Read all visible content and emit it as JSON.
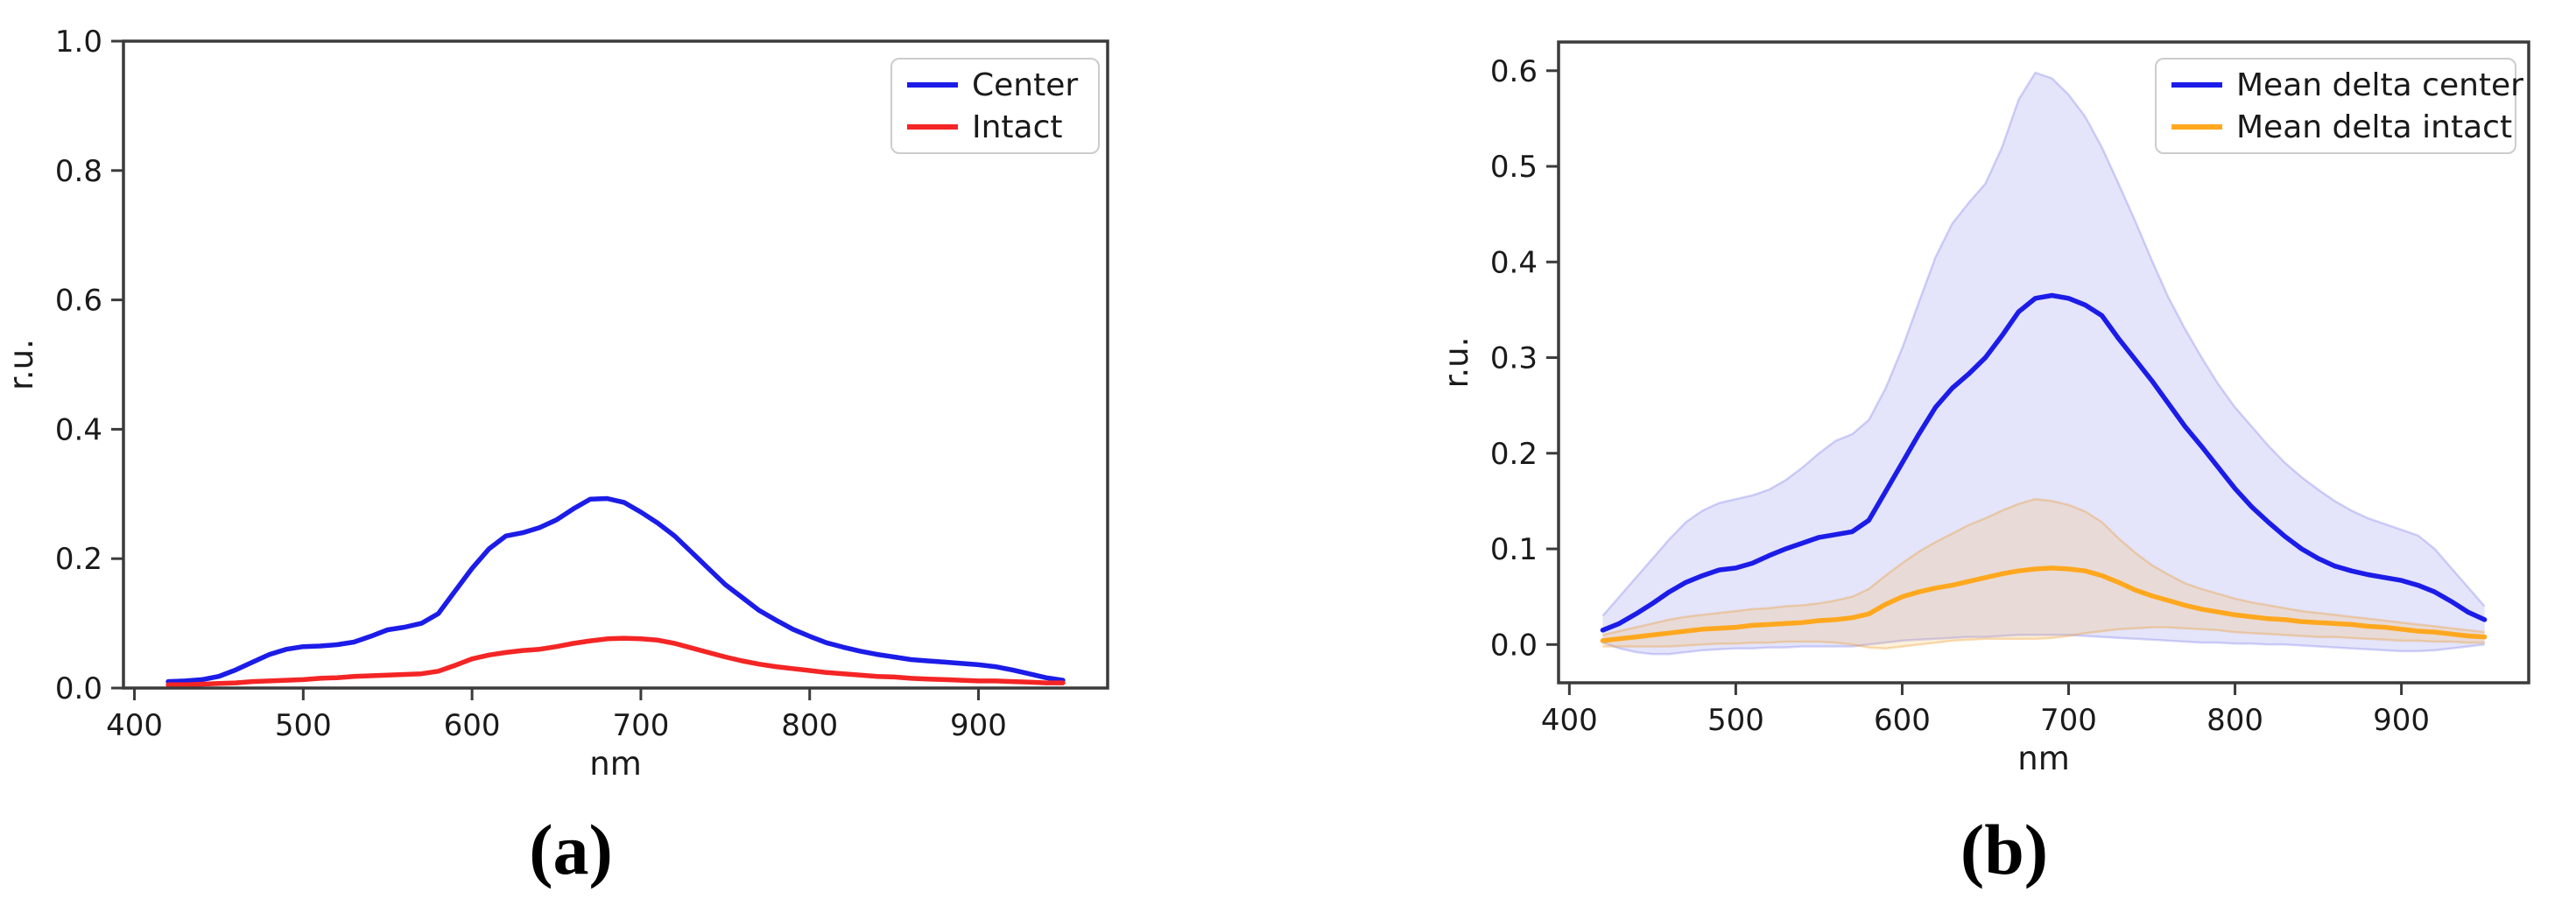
{
  "captions": {
    "a": "(a)",
    "b": "(b)"
  },
  "colors": {
    "spine": "#3b3b3b",
    "text": "#1a1a1a",
    "legend_border": "#cccccc",
    "blue_line": "#1c1ce8",
    "red_line": "#f42525",
    "orange_line": "#ffa81f"
  },
  "chart_data": [
    {
      "id": "a",
      "type": "line",
      "title": "",
      "xlabel": "nm",
      "ylabel": "r.u.",
      "xlim": [
        393.5,
        976.5
      ],
      "ylim": [
        0.0,
        1.0
      ],
      "grid": false,
      "xticks": [
        400,
        500,
        600,
        700,
        800,
        900
      ],
      "xtick_labels": [
        "400",
        "500",
        "600",
        "700",
        "800",
        "900"
      ],
      "yticks": [
        0.0,
        0.2,
        0.4,
        0.6,
        0.8,
        1.0
      ],
      "ytick_labels": [
        "0.0",
        "0.2",
        "0.4",
        "0.6",
        "0.8",
        "1.0"
      ],
      "legend": {
        "position": "upper right",
        "entries": [
          {
            "label": "Center",
            "color": "#1c1ce8"
          },
          {
            "label": "Intact",
            "color": "#f42525"
          }
        ]
      },
      "x": [
        420,
        430,
        440,
        450,
        460,
        470,
        480,
        490,
        500,
        510,
        520,
        530,
        540,
        550,
        560,
        570,
        580,
        590,
        600,
        610,
        620,
        630,
        640,
        650,
        660,
        670,
        680,
        690,
        700,
        710,
        720,
        730,
        740,
        750,
        760,
        770,
        780,
        790,
        800,
        810,
        820,
        830,
        840,
        850,
        860,
        870,
        880,
        890,
        900,
        910,
        920,
        930,
        940,
        950
      ],
      "series": [
        {
          "name": "Center",
          "color": "#1c1ce8",
          "y": [
            0.01,
            0.011,
            0.013,
            0.018,
            0.028,
            0.04,
            0.052,
            0.06,
            0.064,
            0.065,
            0.067,
            0.071,
            0.08,
            0.09,
            0.094,
            0.1,
            0.115,
            0.15,
            0.185,
            0.215,
            0.235,
            0.24,
            0.248,
            0.26,
            0.277,
            0.292,
            0.293,
            0.287,
            0.272,
            0.255,
            0.235,
            0.21,
            0.185,
            0.16,
            0.14,
            0.12,
            0.105,
            0.091,
            0.08,
            0.07,
            0.063,
            0.057,
            0.052,
            0.048,
            0.044,
            0.042,
            0.04,
            0.038,
            0.036,
            0.033,
            0.028,
            0.022,
            0.016,
            0.012
          ]
        },
        {
          "name": "Intact",
          "color": "#f42525",
          "y": [
            0.005,
            0.005,
            0.006,
            0.007,
            0.008,
            0.01,
            0.011,
            0.012,
            0.013,
            0.015,
            0.016,
            0.018,
            0.019,
            0.02,
            0.021,
            0.022,
            0.026,
            0.035,
            0.045,
            0.051,
            0.055,
            0.058,
            0.06,
            0.064,
            0.069,
            0.073,
            0.076,
            0.077,
            0.076,
            0.074,
            0.069,
            0.062,
            0.055,
            0.048,
            0.042,
            0.037,
            0.033,
            0.03,
            0.027,
            0.024,
            0.022,
            0.02,
            0.018,
            0.017,
            0.015,
            0.014,
            0.013,
            0.012,
            0.011,
            0.011,
            0.01,
            0.009,
            0.008,
            0.008
          ]
        }
      ]
    },
    {
      "id": "b",
      "type": "line",
      "title": "",
      "xlabel": "nm",
      "ylabel": "r.u.",
      "xlim": [
        393.5,
        976.5
      ],
      "ylim": [
        -0.04,
        0.63
      ],
      "grid": false,
      "xticks": [
        400,
        500,
        600,
        700,
        800,
        900
      ],
      "xtick_labels": [
        "400",
        "500",
        "600",
        "700",
        "800",
        "900"
      ],
      "yticks": [
        0.0,
        0.1,
        0.2,
        0.3,
        0.4,
        0.5,
        0.6
      ],
      "ytick_labels": [
        "0.0",
        "0.1",
        "0.2",
        "0.3",
        "0.4",
        "0.5",
        "0.6"
      ],
      "legend": {
        "position": "upper right",
        "entries": [
          {
            "label": "Mean delta center",
            "color": "#1c1ce8"
          },
          {
            "label": "Mean delta intact",
            "color": "#ffa81f"
          }
        ]
      },
      "x": [
        420,
        430,
        440,
        450,
        460,
        470,
        480,
        490,
        500,
        510,
        520,
        530,
        540,
        550,
        560,
        570,
        580,
        590,
        600,
        610,
        620,
        630,
        640,
        650,
        660,
        670,
        680,
        690,
        700,
        710,
        720,
        730,
        740,
        750,
        760,
        770,
        780,
        790,
        800,
        810,
        820,
        830,
        840,
        850,
        860,
        870,
        880,
        890,
        900,
        910,
        920,
        930,
        940,
        950
      ],
      "series": [
        {
          "name": "Mean delta center",
          "color": "#1c1ce8",
          "y": [
            0.015,
            0.022,
            0.032,
            0.043,
            0.055,
            0.065,
            0.072,
            0.078,
            0.08,
            0.085,
            0.093,
            0.1,
            0.106,
            0.112,
            0.115,
            0.118,
            0.13,
            0.16,
            0.19,
            0.22,
            0.248,
            0.268,
            0.283,
            0.3,
            0.323,
            0.348,
            0.362,
            0.365,
            0.362,
            0.355,
            0.344,
            0.32,
            0.298,
            0.276,
            0.252,
            0.228,
            0.207,
            0.185,
            0.163,
            0.144,
            0.128,
            0.113,
            0.1,
            0.09,
            0.082,
            0.077,
            0.073,
            0.07,
            0.067,
            0.062,
            0.055,
            0.045,
            0.034,
            0.026
          ],
          "band": {
            "fill": "rgba(64,64,226,0.14)",
            "edge": "rgba(64,64,226,0.22)",
            "upper": [
              0.03,
              0.05,
              0.07,
              0.09,
              0.11,
              0.128,
              0.14,
              0.148,
              0.152,
              0.156,
              0.162,
              0.172,
              0.185,
              0.2,
              0.213,
              0.22,
              0.235,
              0.268,
              0.31,
              0.358,
              0.405,
              0.44,
              0.462,
              0.482,
              0.52,
              0.57,
              0.598,
              0.592,
              0.575,
              0.552,
              0.52,
              0.482,
              0.443,
              0.402,
              0.363,
              0.33,
              0.3,
              0.272,
              0.248,
              0.228,
              0.208,
              0.19,
              0.175,
              0.162,
              0.15,
              0.14,
              0.132,
              0.126,
              0.12,
              0.114,
              0.1,
              0.08,
              0.06,
              0.04
            ],
            "lower": [
              0.002,
              -0.004,
              -0.008,
              -0.01,
              -0.01,
              -0.008,
              -0.006,
              -0.005,
              -0.004,
              -0.004,
              -0.003,
              -0.003,
              -0.002,
              -0.002,
              -0.002,
              -0.002,
              0.0,
              0.002,
              0.004,
              0.005,
              0.006,
              0.007,
              0.008,
              0.008,
              0.009,
              0.01,
              0.01,
              0.01,
              0.01,
              0.009,
              0.008,
              0.007,
              0.006,
              0.005,
              0.004,
              0.003,
              0.002,
              0.002,
              0.001,
              0.001,
              0.0,
              0.0,
              -0.001,
              -0.002,
              -0.003,
              -0.004,
              -0.005,
              -0.006,
              -0.007,
              -0.007,
              -0.006,
              -0.004,
              -0.002,
              0.0
            ]
          }
        },
        {
          "name": "Mean delta intact",
          "color": "#ffa81f",
          "y": [
            0.004,
            0.006,
            0.008,
            0.01,
            0.012,
            0.014,
            0.016,
            0.017,
            0.018,
            0.02,
            0.021,
            0.022,
            0.023,
            0.025,
            0.026,
            0.028,
            0.032,
            0.042,
            0.05,
            0.055,
            0.059,
            0.062,
            0.066,
            0.07,
            0.074,
            0.077,
            0.079,
            0.08,
            0.079,
            0.077,
            0.072,
            0.065,
            0.057,
            0.051,
            0.046,
            0.041,
            0.037,
            0.034,
            0.031,
            0.029,
            0.027,
            0.026,
            0.024,
            0.023,
            0.022,
            0.021,
            0.019,
            0.018,
            0.016,
            0.014,
            0.013,
            0.011,
            0.009,
            0.008
          ],
          "band": {
            "fill": "rgba(255,166,32,0.16)",
            "edge": "rgba(235,155,45,0.35)",
            "upper": [
              0.01,
              0.014,
              0.018,
              0.022,
              0.026,
              0.029,
              0.031,
              0.033,
              0.035,
              0.037,
              0.038,
              0.04,
              0.041,
              0.043,
              0.046,
              0.05,
              0.058,
              0.072,
              0.085,
              0.097,
              0.107,
              0.116,
              0.125,
              0.132,
              0.14,
              0.147,
              0.152,
              0.15,
              0.146,
              0.139,
              0.128,
              0.111,
              0.096,
              0.083,
              0.073,
              0.064,
              0.058,
              0.053,
              0.048,
              0.044,
              0.041,
              0.038,
              0.035,
              0.033,
              0.031,
              0.029,
              0.027,
              0.025,
              0.023,
              0.021,
              0.019,
              0.017,
              0.015,
              0.013
            ],
            "lower": [
              -0.002,
              -0.002,
              -0.002,
              -0.002,
              -0.002,
              -0.001,
              0.0,
              0.001,
              0.001,
              0.002,
              0.002,
              0.003,
              0.003,
              0.003,
              0.002,
              0.0,
              -0.003,
              -0.004,
              -0.002,
              0.0,
              0.002,
              0.004,
              0.005,
              0.006,
              0.006,
              0.006,
              0.006,
              0.007,
              0.009,
              0.012,
              0.014,
              0.016,
              0.017,
              0.018,
              0.018,
              0.017,
              0.016,
              0.015,
              0.013,
              0.012,
              0.011,
              0.01,
              0.009,
              0.008,
              0.008,
              0.007,
              0.006,
              0.005,
              0.004,
              0.004,
              0.003,
              0.003,
              0.002,
              0.002
            ]
          }
        }
      ]
    }
  ]
}
